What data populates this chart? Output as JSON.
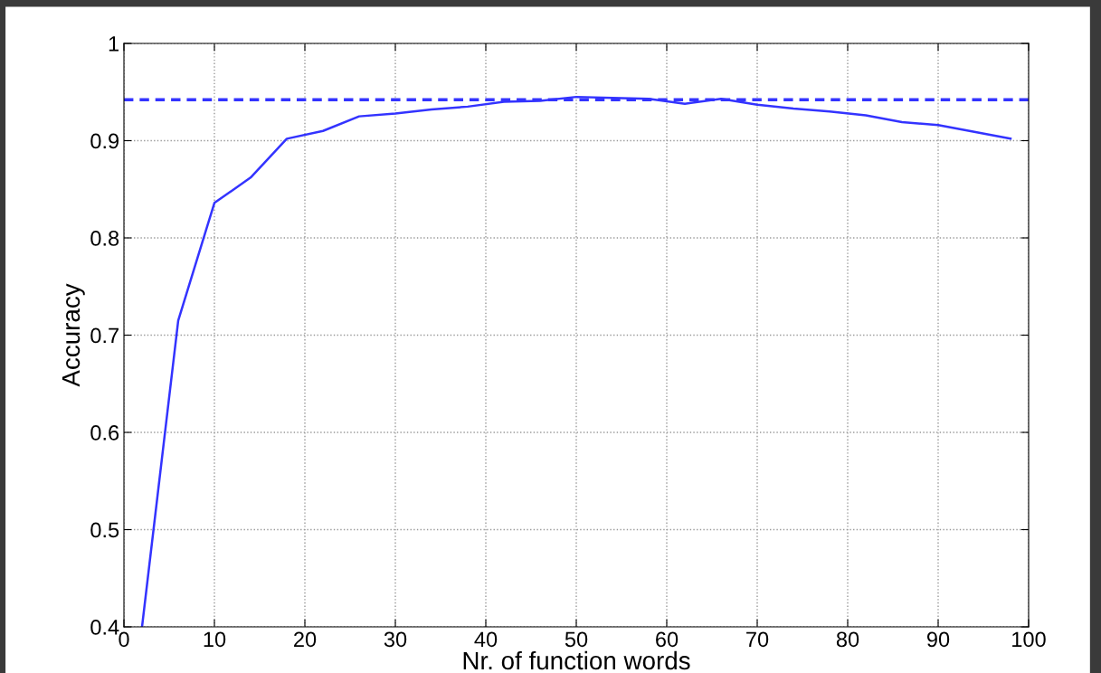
{
  "chart_data": {
    "type": "line",
    "xlabel": "Nr. of function words",
    "ylabel": "Accuracy",
    "x": [
      2,
      6,
      10,
      14,
      18,
      22,
      26,
      30,
      34,
      38,
      42,
      46,
      50,
      54,
      58,
      62,
      66,
      70,
      74,
      78,
      82,
      86,
      90,
      94,
      98
    ],
    "series": [
      {
        "color": "#3333ff",
        "values": [
          0.4,
          0.715,
          0.836,
          0.862,
          0.902,
          0.91,
          0.925,
          0.928,
          0.932,
          0.935,
          0.94,
          0.941,
          0.945,
          0.944,
          0.943,
          0.938,
          0.943,
          0.937,
          0.933,
          0.93,
          0.926,
          0.919,
          0.916,
          0.909,
          0.902
        ]
      }
    ],
    "ref_lines": [
      {
        "axis": "y",
        "value": 0.942,
        "color": "#3333ff",
        "line_style": "dashed"
      }
    ],
    "xlim": [
      0,
      100
    ],
    "ylim": [
      0.4,
      1
    ],
    "xticks": [
      0,
      10,
      20,
      30,
      40,
      50,
      60,
      70,
      80,
      90,
      100
    ],
    "yticks": [
      0.4,
      0.5,
      0.6,
      0.7,
      0.8,
      0.9,
      1
    ],
    "grid": true,
    "marker": "none",
    "line_style": "solid"
  }
}
